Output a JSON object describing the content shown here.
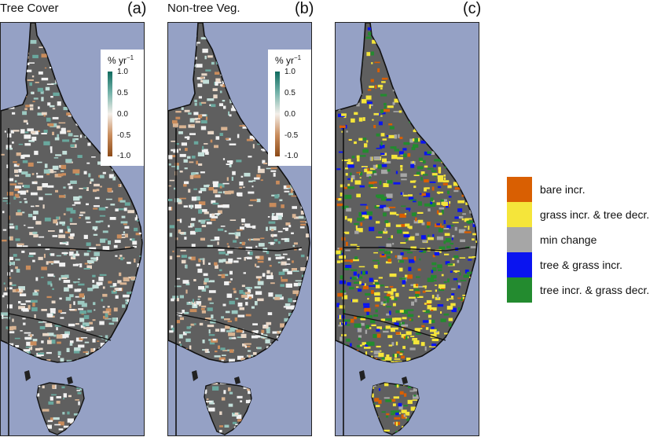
{
  "panels": [
    {
      "title": "Tree Cover",
      "letter": "(a)"
    },
    {
      "title": "Non-tree Veg.",
      "letter": "(b)"
    },
    {
      "title": "",
      "letter": "(c)"
    }
  ],
  "colorbar": {
    "title_base": "% yr",
    "title_exp": "−1",
    "ticks": [
      "1.0",
      "0.5",
      "0.0",
      "-0.5",
      "-1.0"
    ],
    "tick_values": [
      1.0,
      0.5,
      0.0,
      -0.5,
      -1.0
    ],
    "colors": {
      "high": "#0f6b5f",
      "mid": "#f4efea",
      "low": "#8c4a17"
    }
  },
  "legend": [
    {
      "label": "bare incr.",
      "color": "#d95f02"
    },
    {
      "label": "grass incr. & tree decr.",
      "color": "#f5e53a"
    },
    {
      "label": "min change",
      "color": "#a6a6a6"
    },
    {
      "label": "tree & grass incr.",
      "color": "#0a14f0"
    },
    {
      "label": "tree incr. & grass decr.",
      "color": "#238b2f"
    }
  ],
  "map_colors": {
    "ocean": "#95a1c5",
    "land": "#5f5f5f",
    "low_change": "#f2f2f2"
  }
}
